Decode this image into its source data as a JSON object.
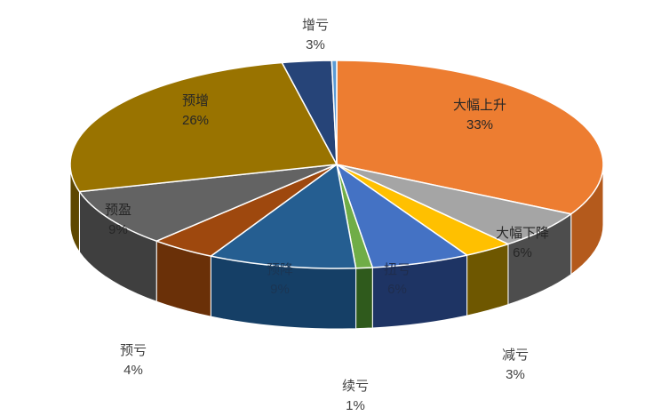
{
  "chart_data": {
    "type": "pie",
    "style": "3d",
    "slices": [
      {
        "label": "大幅上升",
        "value": 33,
        "display": "33%",
        "color": "#ED7D31",
        "side": "#B45A1C",
        "label_inside": true,
        "label_color": "#262626"
      },
      {
        "label": "大幅下降",
        "value": 6,
        "display": "6%",
        "color": "#A5A5A5",
        "side": "#4D4D4D",
        "label_inside": true,
        "label_color": "#262626"
      },
      {
        "label": "减亏",
        "value": 3,
        "display": "3%",
        "color": "#FFC000",
        "side": "#6E5700",
        "label_inside": false,
        "label_color": "#404040"
      },
      {
        "label": "扭亏",
        "value": 6,
        "display": "6%",
        "color": "#4472C4",
        "side": "#1E3464",
        "label_inside": true,
        "label_color": "#1f2d4d"
      },
      {
        "label": "续亏",
        "value": 1,
        "display": "1%",
        "color": "#70AD47",
        "side": "#2F5A1C",
        "label_inside": false,
        "label_color": "#404040"
      },
      {
        "label": "预降",
        "value": 9,
        "display": "9%",
        "color": "#255E91",
        "side": "#153F66",
        "label_inside": true,
        "label_color": "#1b3553"
      },
      {
        "label": "预亏",
        "value": 4,
        "display": "4%",
        "color": "#9E480E",
        "side": "#6A3008",
        "label_inside": false,
        "label_color": "#404040"
      },
      {
        "label": "预盈",
        "value": 9,
        "display": "9%",
        "color": "#636363",
        "side": "#3F3F3F",
        "label_inside": true,
        "label_color": "#262626"
      },
      {
        "label": "预增",
        "value": 26,
        "display": "26%",
        "color": "#997300",
        "side": "#5E4700",
        "label_inside": true,
        "label_color": "#262626"
      },
      {
        "label": "增亏",
        "value": 3,
        "display": "3%",
        "color": "#264478",
        "side": "#15284A",
        "label_inside": false,
        "label_color": "#404040"
      },
      {
        "label": "",
        "value": 0.3,
        "display": "",
        "color": "#5B9BD5",
        "side": "#2E5E8E",
        "label_inside": false,
        "label_color": "#404040"
      }
    ]
  }
}
